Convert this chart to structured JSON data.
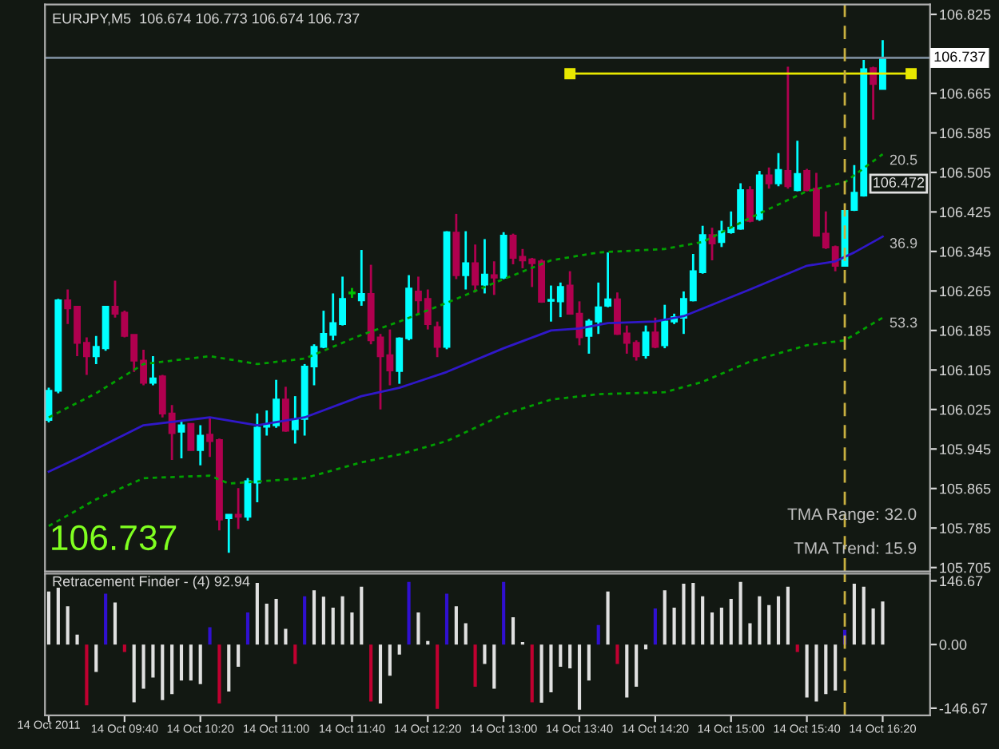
{
  "chart_data": [
    {
      "type": "candlestick",
      "title": "EURJPY,M5  106.674 106.773 106.674 106.737",
      "x": [
        "2011-10-14T09:00",
        "2011-10-14T09:05",
        "2011-10-14T09:10",
        "2011-10-14T09:15",
        "2011-10-14T09:20",
        "2011-10-14T09:25",
        "2011-10-14T09:30",
        "2011-10-14T09:35",
        "2011-10-14T09:40",
        "2011-10-14T09:45",
        "2011-10-14T09:50",
        "2011-10-14T09:55",
        "2011-10-14T10:00",
        "2011-10-14T10:05",
        "2011-10-14T10:10",
        "2011-10-14T10:15",
        "2011-10-14T10:20",
        "2011-10-14T10:25",
        "2011-10-14T10:30",
        "2011-10-14T10:35",
        "2011-10-14T10:40",
        "2011-10-14T10:45",
        "2011-10-14T10:50",
        "2011-10-14T10:55",
        "2011-10-14T11:00",
        "2011-10-14T11:05",
        "2011-10-14T11:10",
        "2011-10-14T11:15",
        "2011-10-14T11:20",
        "2011-10-14T11:25",
        "2011-10-14T11:30",
        "2011-10-14T11:35",
        "2011-10-14T11:40",
        "2011-10-14T11:45",
        "2011-10-14T11:50",
        "2011-10-14T11:55",
        "2011-10-14T12:00",
        "2011-10-14T12:05",
        "2011-10-14T12:10",
        "2011-10-14T12:15",
        "2011-10-14T12:20",
        "2011-10-14T12:25",
        "2011-10-14T12:30",
        "2011-10-14T12:35",
        "2011-10-14T12:40",
        "2011-10-14T12:45",
        "2011-10-14T12:50",
        "2011-10-14T12:55",
        "2011-10-14T13:00",
        "2011-10-14T13:05",
        "2011-10-14T13:10",
        "2011-10-14T13:15",
        "2011-10-14T13:20",
        "2011-10-14T13:25",
        "2011-10-14T13:30",
        "2011-10-14T13:35",
        "2011-10-14T13:40",
        "2011-10-14T13:45",
        "2011-10-14T13:50",
        "2011-10-14T13:55",
        "2011-10-14T14:00",
        "2011-10-14T14:05",
        "2011-10-14T14:10",
        "2011-10-14T14:15",
        "2011-10-14T14:20",
        "2011-10-14T14:25",
        "2011-10-14T14:30",
        "2011-10-14T14:35",
        "2011-10-14T14:40",
        "2011-10-14T14:45",
        "2011-10-14T14:50",
        "2011-10-14T14:55",
        "2011-10-14T15:00",
        "2011-10-14T15:05",
        "2011-10-14T15:10",
        "2011-10-14T15:15",
        "2011-10-14T15:20",
        "2011-10-14T15:25",
        "2011-10-14T15:30",
        "2011-10-14T15:35",
        "2011-10-14T15:40",
        "2011-10-14T15:45",
        "2011-10-14T15:50",
        "2011-10-14T15:55",
        "2011-10-14T16:00",
        "2011-10-14T16:05",
        "2011-10-14T16:10",
        "2011-10-14T16:15",
        "2011-10-14T16:20"
      ],
      "ohlc": [
        [
          106.004,
          106.069,
          105.999,
          106.063
        ],
        [
          106.063,
          106.249,
          106.058,
          106.246
        ],
        [
          106.246,
          106.268,
          106.198,
          106.23
        ],
        [
          106.233,
          106.235,
          106.133,
          106.16
        ],
        [
          106.16,
          106.171,
          106.095,
          106.133
        ],
        [
          106.133,
          106.174,
          106.117,
          106.152
        ],
        [
          106.149,
          106.235,
          106.144,
          106.233
        ],
        [
          106.233,
          106.286,
          106.211,
          106.219
        ],
        [
          106.221,
          106.225,
          106.171,
          106.174
        ],
        [
          106.176,
          106.176,
          106.101,
          106.124
        ],
        [
          106.124,
          106.146,
          106.074,
          106.079
        ],
        [
          106.079,
          106.133,
          106.074,
          106.088
        ],
        [
          106.092,
          106.095,
          106.009,
          106.017
        ],
        [
          106.017,
          106.034,
          105.923,
          105.977
        ],
        [
          105.98,
          106.002,
          105.926,
          105.993
        ],
        [
          105.996,
          105.997,
          105.942,
          105.943
        ],
        [
          105.943,
          105.993,
          105.912,
          105.972
        ],
        [
          105.974,
          106.009,
          105.929,
          105.961
        ],
        [
          105.963,
          105.966,
          105.78,
          105.802
        ],
        [
          105.805,
          105.812,
          105.735,
          105.812
        ],
        [
          105.812,
          105.866,
          105.783,
          105.808
        ],
        [
          105.808,
          105.886,
          105.8,
          105.88
        ],
        [
          105.877,
          106.017,
          105.837,
          105.988
        ],
        [
          105.99,
          106.023,
          105.972,
          105.995
        ],
        [
          105.993,
          106.085,
          105.988,
          106.045
        ],
        [
          106.045,
          106.071,
          105.98,
          105.982
        ],
        [
          105.985,
          106.052,
          105.956,
          106.004
        ],
        [
          106.006,
          106.117,
          105.972,
          106.112
        ],
        [
          106.112,
          106.157,
          106.074,
          106.152
        ],
        [
          106.152,
          106.225,
          106.149,
          106.178
        ],
        [
          106.176,
          106.26,
          106.165,
          106.2
        ],
        [
          106.198,
          106.294,
          106.195,
          106.249
        ],
        [
          106.26,
          106.271,
          106.251,
          106.262
        ],
        [
          106.246,
          106.348,
          106.235,
          106.259
        ],
        [
          106.259,
          106.318,
          106.157,
          106.165
        ],
        [
          106.171,
          106.178,
          106.025,
          106.133
        ],
        [
          106.135,
          106.187,
          106.074,
          106.104
        ],
        [
          106.103,
          106.171,
          106.077,
          106.169
        ],
        [
          106.169,
          106.297,
          106.165,
          106.27
        ],
        [
          106.264,
          106.294,
          106.219,
          106.246
        ],
        [
          106.249,
          106.268,
          106.187,
          106.198
        ],
        [
          106.192,
          106.203,
          106.131,
          106.152
        ],
        [
          106.152,
          106.386,
          106.147,
          106.384
        ],
        [
          106.383,
          106.421,
          106.289,
          106.297
        ],
        [
          106.297,
          106.386,
          106.268,
          106.321
        ],
        [
          106.321,
          106.359,
          106.262,
          106.278
        ],
        [
          106.278,
          106.37,
          106.26,
          106.298
        ],
        [
          106.297,
          106.325,
          106.257,
          106.292
        ],
        [
          106.292,
          106.384,
          106.289,
          106.377
        ],
        [
          106.377,
          106.381,
          106.319,
          106.332
        ],
        [
          106.334,
          106.35,
          106.311,
          106.327
        ],
        [
          106.329,
          106.332,
          106.273,
          106.321
        ],
        [
          106.325,
          106.329,
          106.241,
          106.243
        ],
        [
          106.245,
          106.276,
          106.203,
          106.247
        ],
        [
          106.244,
          106.282,
          106.212,
          106.273
        ],
        [
          106.276,
          106.305,
          106.217,
          106.219
        ],
        [
          106.219,
          106.244,
          106.155,
          106.171
        ],
        [
          106.174,
          106.208,
          106.138,
          106.203
        ],
        [
          106.203,
          106.282,
          106.178,
          106.232
        ],
        [
          106.235,
          106.343,
          106.232,
          106.248
        ],
        [
          106.248,
          106.262,
          106.176,
          106.178
        ],
        [
          106.179,
          106.195,
          106.138,
          106.16
        ],
        [
          106.16,
          106.165,
          106.124,
          106.133
        ],
        [
          106.135,
          106.195,
          106.128,
          106.181
        ],
        [
          106.181,
          106.211,
          106.149,
          106.152
        ],
        [
          106.155,
          106.237,
          106.149,
          106.203
        ],
        [
          106.203,
          106.219,
          106.198,
          106.212
        ],
        [
          106.211,
          106.264,
          106.178,
          106.249
        ],
        [
          106.246,
          106.34,
          106.244,
          106.305
        ],
        [
          106.303,
          106.397,
          106.3,
          106.378
        ],
        [
          106.378,
          106.393,
          106.327,
          106.361
        ],
        [
          106.364,
          106.407,
          106.354,
          106.386
        ],
        [
          106.384,
          106.426,
          106.381,
          106.393
        ],
        [
          106.391,
          106.483,
          106.389,
          106.469
        ],
        [
          106.469,
          106.477,
          106.404,
          106.407
        ],
        [
          106.411,
          106.508,
          106.407,
          106.499
        ],
        [
          106.499,
          106.515,
          106.472,
          106.483
        ],
        [
          106.483,
          106.544,
          106.477,
          106.51
        ],
        [
          106.508,
          106.719,
          106.472,
          106.477
        ],
        [
          106.469,
          106.569,
          106.467,
          106.502
        ],
        [
          106.508,
          106.512,
          106.467,
          106.469
        ],
        [
          106.472,
          106.504,
          106.375,
          106.377
        ],
        [
          106.381,
          106.426,
          106.35,
          106.353
        ],
        [
          106.354,
          106.357,
          106.305,
          106.316
        ],
        [
          106.316,
          106.429,
          106.314,
          106.427
        ],
        [
          106.429,
          106.52,
          106.427,
          106.464
        ],
        [
          106.458,
          106.733,
          106.456,
          106.714
        ],
        [
          106.716,
          106.719,
          106.612,
          106.684
        ],
        [
          106.674,
          106.773,
          106.674,
          106.737
        ]
      ],
      "colors": [
        "#00ffff",
        "#00ffff",
        "#b0004f",
        "#b0004f",
        "#b0004f",
        "#00ffff",
        "#00ffff",
        "#b0004f",
        "#b0004f",
        "#b0004f",
        "#b0004f",
        "#00ffff",
        "#b0004f",
        "#b0004f",
        "#00ffff",
        "#b0004f",
        "#00ffff",
        "#b0004f",
        "#b0004f",
        "#00ffff",
        "#b0004f",
        "#00ffff",
        "#00ffff",
        "#00ffff",
        "#00ffff",
        "#b0004f",
        "#00ffff",
        "#00ffff",
        "#00ffff",
        "#00ffff",
        "#00ffff",
        "#00ffff",
        "#00c000",
        "#00ffff",
        "#b0004f",
        "#b0004f",
        "#b0004f",
        "#00ffff",
        "#00ffff",
        "#b0004f",
        "#b0004f",
        "#b0004f",
        "#00ffff",
        "#b0004f",
        "#00ffff",
        "#b0004f",
        "#00ffff",
        "#b0004f",
        "#00ffff",
        "#b0004f",
        "#b0004f",
        "#b0004f",
        "#b0004f",
        "#00ffff",
        "#00ffff",
        "#b0004f",
        "#b0004f",
        "#00ffff",
        "#00ffff",
        "#00ffff",
        "#b0004f",
        "#b0004f",
        "#b0004f",
        "#00ffff",
        "#b0004f",
        "#00ffff",
        "#00ffff",
        "#00ffff",
        "#00ffff",
        "#00ffff",
        "#b0004f",
        "#00ffff",
        "#00ffff",
        "#00ffff",
        "#b0004f",
        "#00ffff",
        "#b0004f",
        "#00ffff",
        "#b0004f",
        "#00ffff",
        "#b0004f",
        "#b0004f",
        "#b0004f",
        "#b0004f",
        "#00ffff",
        "#00ffff",
        "#00ffff",
        "#b0004f",
        "#00ffff"
      ],
      "series": [
        {
          "type": "line",
          "color": "#3018c8",
          "line_style": "solid",
          "x": [
            "2011-10-14T09:00",
            "2011-10-14T09:15",
            "2011-10-14T09:50",
            "2011-10-14T10:25",
            "2011-10-14T10:50",
            "2011-10-14T11:15",
            "2011-10-14T11:45",
            "2011-10-14T12:05",
            "2011-10-14T12:30",
            "2011-10-14T13:00",
            "2011-10-14T13:25",
            "2011-10-14T13:40",
            "2011-10-14T13:55",
            "2011-10-14T14:20",
            "2011-10-14T14:35",
            "2011-10-14T15:10",
            "2011-10-14T15:40",
            "2011-10-14T15:55",
            "2011-10-14T16:05",
            "2011-10-14T16:20"
          ],
          "values": [
            105.899,
            105.926,
            105.993,
            106.009,
            105.993,
            106.009,
            106.052,
            106.069,
            106.101,
            106.149,
            106.185,
            106.189,
            106.2,
            106.203,
            106.214,
            106.268,
            106.316,
            106.325,
            106.343,
            106.375
          ]
        },
        {
          "type": "line",
          "color": "#00a000",
          "line_style": "dotted",
          "x": [
            "2011-10-14T09:00",
            "2011-10-14T09:25",
            "2011-10-14T09:50",
            "2011-10-14T10:25",
            "2011-10-14T10:50",
            "2011-10-14T11:15",
            "2011-10-14T11:45",
            "2011-10-14T12:05",
            "2011-10-14T12:30",
            "2011-10-14T13:00",
            "2011-10-14T13:25",
            "2011-10-14T13:50",
            "2011-10-14T14:25",
            "2011-10-14T14:45",
            "2011-10-14T15:10",
            "2011-10-14T15:40",
            "2011-10-14T16:00",
            "2011-10-14T16:20"
          ],
          "values": [
            106.009,
            106.058,
            106.117,
            106.133,
            106.117,
            106.128,
            106.176,
            106.203,
            106.241,
            106.289,
            106.327,
            106.343,
            106.35,
            106.364,
            106.413,
            106.467,
            106.485,
            106.542
          ]
        },
        {
          "type": "line",
          "color": "#00a000",
          "line_style": "dotted",
          "x": [
            "2011-10-14T09:00",
            "2011-10-14T09:25",
            "2011-10-14T09:50",
            "2011-10-14T10:25",
            "2011-10-14T10:35",
            "2011-10-14T11:15",
            "2011-10-14T11:45",
            "2011-10-14T12:05",
            "2011-10-14T12:30",
            "2011-10-14T13:00",
            "2011-10-14T13:25",
            "2011-10-14T13:50",
            "2011-10-14T14:25",
            "2011-10-14T14:45",
            "2011-10-14T15:10",
            "2011-10-14T15:40",
            "2011-10-14T16:00",
            "2011-10-14T16:20"
          ],
          "values": [
            105.789,
            105.843,
            105.886,
            105.891,
            105.875,
            105.886,
            105.918,
            105.934,
            105.961,
            106.015,
            106.045,
            106.056,
            106.06,
            106.081,
            106.122,
            106.155,
            106.165,
            106.211
          ]
        },
        {
          "type": "line",
          "color": "#e8e800",
          "line_style": "solid",
          "marker": "square",
          "x": [
            "2011-10-14T13:35",
            "2011-10-14T16:35"
          ],
          "values": [
            106.705,
            106.705
          ]
        }
      ],
      "ref_lines": [
        {
          "axis": "y",
          "value": 106.737,
          "label": "106.737",
          "color": "#7a8a9a"
        },
        {
          "axis": "x",
          "value": "2011-10-14T16:00",
          "color": "#c8b040",
          "line_style": "dashed"
        }
      ],
      "annotations": [
        "106.737",
        "TMA Range: 32.0",
        "TMA Trend: 15.9",
        "20.5",
        "36.9",
        "53.3",
        "106.472"
      ],
      "xlim": [
        "2011-10-14T08:58",
        "2011-10-14T16:45"
      ],
      "ylim": [
        105.697,
        106.845
      ],
      "yticks": [
        106.825,
        106.665,
        106.585,
        106.505,
        106.425,
        106.345,
        106.265,
        106.185,
        106.105,
        106.025,
        105.945,
        105.865,
        105.785,
        105.705
      ],
      "tick_labels": "y",
      "grid": false,
      "legend": false
    },
    {
      "type": "bar",
      "title": "Retracement Finder - (4) 92.94",
      "x": [
        "2011-10-14T09:00",
        "2011-10-14T09:05",
        "2011-10-14T09:10",
        "2011-10-14T09:15",
        "2011-10-14T09:20",
        "2011-10-14T09:25",
        "2011-10-14T09:30",
        "2011-10-14T09:35",
        "2011-10-14T09:40",
        "2011-10-14T09:45",
        "2011-10-14T09:50",
        "2011-10-14T09:55",
        "2011-10-14T10:00",
        "2011-10-14T10:05",
        "2011-10-14T10:10",
        "2011-10-14T10:15",
        "2011-10-14T10:20",
        "2011-10-14T10:25",
        "2011-10-14T10:30",
        "2011-10-14T10:35",
        "2011-10-14T10:40",
        "2011-10-14T10:45",
        "2011-10-14T10:50",
        "2011-10-14T10:55",
        "2011-10-14T11:00",
        "2011-10-14T11:05",
        "2011-10-14T11:10",
        "2011-10-14T11:15",
        "2011-10-14T11:20",
        "2011-10-14T11:25",
        "2011-10-14T11:30",
        "2011-10-14T11:35",
        "2011-10-14T11:40",
        "2011-10-14T11:45",
        "2011-10-14T11:50",
        "2011-10-14T11:55",
        "2011-10-14T12:00",
        "2011-10-14T12:05",
        "2011-10-14T12:10",
        "2011-10-14T12:15",
        "2011-10-14T12:20",
        "2011-10-14T12:25",
        "2011-10-14T12:30",
        "2011-10-14T12:35",
        "2011-10-14T12:40",
        "2011-10-14T12:45",
        "2011-10-14T12:50",
        "2011-10-14T12:55",
        "2011-10-14T13:00",
        "2011-10-14T13:05",
        "2011-10-14T13:10",
        "2011-10-14T13:15",
        "2011-10-14T13:20",
        "2011-10-14T13:25",
        "2011-10-14T13:30",
        "2011-10-14T13:35",
        "2011-10-14T13:40",
        "2011-10-14T13:45",
        "2011-10-14T13:50",
        "2011-10-14T13:55",
        "2011-10-14T14:00",
        "2011-10-14T14:05",
        "2011-10-14T14:10",
        "2011-10-14T14:15",
        "2011-10-14T14:20",
        "2011-10-14T14:25",
        "2011-10-14T14:30",
        "2011-10-14T14:35",
        "2011-10-14T14:40",
        "2011-10-14T14:45",
        "2011-10-14T14:50",
        "2011-10-14T14:55",
        "2011-10-14T15:00",
        "2011-10-14T15:05",
        "2011-10-14T15:10",
        "2011-10-14T15:15",
        "2011-10-14T15:20",
        "2011-10-14T15:25",
        "2011-10-14T15:30",
        "2011-10-14T15:35",
        "2011-10-14T15:40",
        "2011-10-14T15:45",
        "2011-10-14T15:50",
        "2011-10-14T15:55",
        "2011-10-14T16:00",
        "2011-10-14T16:05",
        "2011-10-14T16:10",
        "2011-10-14T16:15",
        "2011-10-14T16:20"
      ],
      "values": [
        122,
        131,
        88,
        23,
        -140,
        -63,
        117,
        97,
        -17,
        -133,
        -102,
        -76,
        -128,
        -114,
        -83,
        -83,
        -91,
        40,
        -136,
        -108,
        -51,
        74,
        142,
        94,
        105,
        36,
        -45,
        111,
        125,
        110,
        85,
        111,
        74,
        133,
        -131,
        -136,
        -72,
        -23,
        144,
        74,
        8,
        -148,
        117,
        88,
        49,
        -97,
        -45,
        -102,
        144,
        63,
        6,
        -133,
        -134,
        -110,
        -51,
        -55,
        -150,
        -83,
        45,
        122,
        -45,
        -122,
        -97,
        -11,
        83,
        125,
        85,
        140,
        142,
        111,
        74,
        85,
        105,
        144,
        49,
        111,
        91,
        111,
        133,
        -17,
        -122,
        -131,
        -114,
        -106,
        34,
        140,
        133,
        83,
        99
      ],
      "colors": [
        "#e0e0e0",
        "#e0e0e0",
        "#e0e0e0",
        "#e0e0e0",
        "#c00030",
        "#e0e0e0",
        "#3010d0",
        "#e0e0e0",
        "#c00030",
        "#e0e0e0",
        "#e0e0e0",
        "#e0e0e0",
        "#e0e0e0",
        "#e0e0e0",
        "#e0e0e0",
        "#e0e0e0",
        "#e0e0e0",
        "#3010d0",
        "#c00030",
        "#e0e0e0",
        "#e0e0e0",
        "#3010d0",
        "#e0e0e0",
        "#e0e0e0",
        "#e0e0e0",
        "#e0e0e0",
        "#c00030",
        "#3010d0",
        "#e0e0e0",
        "#e0e0e0",
        "#e0e0e0",
        "#e0e0e0",
        "#e0e0e0",
        "#e0e0e0",
        "#c00030",
        "#e0e0e0",
        "#e0e0e0",
        "#e0e0e0",
        "#3010d0",
        "#e0e0e0",
        "#e0e0e0",
        "#c00030",
        "#3010d0",
        "#e0e0e0",
        "#e0e0e0",
        "#c00030",
        "#e0e0e0",
        "#e0e0e0",
        "#3010d0",
        "#e0e0e0",
        "#e0e0e0",
        "#c00030",
        "#e0e0e0",
        "#e0e0e0",
        "#e0e0e0",
        "#e0e0e0",
        "#e0e0e0",
        "#e0e0e0",
        "#3010d0",
        "#e0e0e0",
        "#c00030",
        "#e0e0e0",
        "#e0e0e0",
        "#e0e0e0",
        "#3010d0",
        "#e0e0e0",
        "#e0e0e0",
        "#e0e0e0",
        "#e0e0e0",
        "#e0e0e0",
        "#e0e0e0",
        "#e0e0e0",
        "#e0e0e0",
        "#e0e0e0",
        "#e0e0e0",
        "#e0e0e0",
        "#e0e0e0",
        "#e0e0e0",
        "#e0e0e0",
        "#c00030",
        "#e0e0e0",
        "#e0e0e0",
        "#e0e0e0",
        "#e0e0e0",
        "#3010d0",
        "#e0e0e0",
        "#e0e0e0",
        "#e0e0e0",
        "#e0e0e0"
      ],
      "annotations": [
        "14 Oct 2011"
      ],
      "ref_lines": [
        {
          "axis": "x",
          "value": "2011-10-14T16:00",
          "color": "#c8b040",
          "line_style": "dashed"
        }
      ],
      "xlim": [
        "2011-10-14T08:58",
        "2011-10-14T16:45"
      ],
      "xticks": [
        {
          "value": "2011-10-14T09:00",
          "label": null
        },
        {
          "value": "2011-10-14T09:40",
          "label": "14 Oct 09:40"
        },
        {
          "value": "2011-10-14T10:20",
          "label": "14 Oct 10:20"
        },
        {
          "value": "2011-10-14T11:00",
          "label": "14 Oct 11:00"
        },
        {
          "value": "2011-10-14T11:40",
          "label": "14 Oct 11:40"
        },
        {
          "value": "2011-10-14T12:20",
          "label": "14 Oct 12:20"
        },
        {
          "value": "2011-10-14T13:00",
          "label": "14 Oct 13:00"
        },
        {
          "value": "2011-10-14T13:40",
          "label": "14 Oct 13:40"
        },
        {
          "value": "2011-10-14T14:20",
          "label": "14 Oct 14:20"
        },
        {
          "value": "2011-10-14T15:00",
          "label": "14 Oct 15:00"
        },
        {
          "value": "2011-10-14T15:40",
          "label": "14 Oct 15:40"
        },
        {
          "value": "2011-10-14T16:20",
          "label": "14 Oct 16:20"
        }
      ],
      "ylim": [
        -163,
        163
      ],
      "yticks": [
        {
          "value": 146.67,
          "label": "146.67"
        },
        {
          "value": 0,
          "label": "0.00"
        },
        {
          "value": -146.67,
          "label": "-146.67"
        }
      ],
      "grid": false,
      "legend": false
    }
  ]
}
